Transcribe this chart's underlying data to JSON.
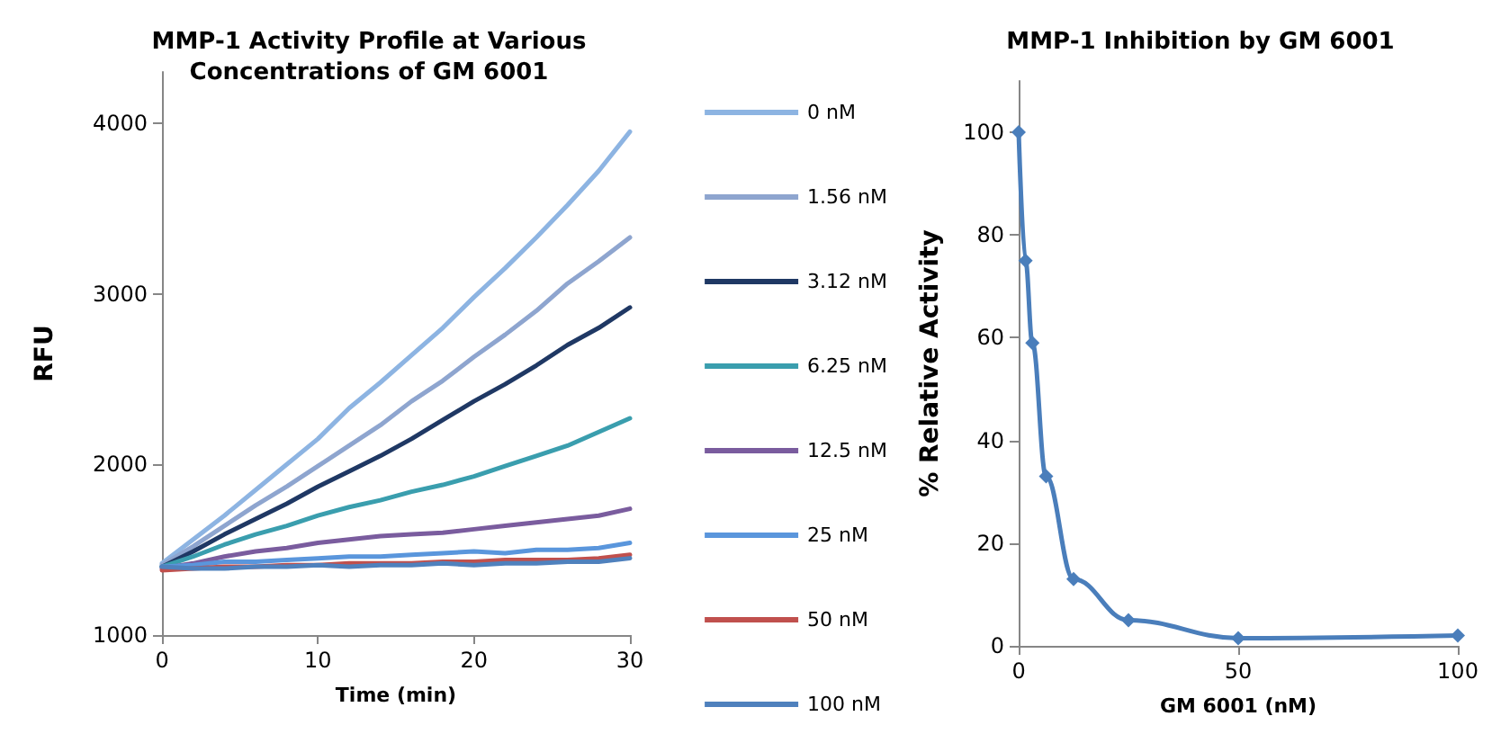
{
  "chart_data": [
    {
      "type": "line",
      "title": "MMP-1 Activity Profile at Various\nConcentrations of GM 6001",
      "xlabel": "Time (min)",
      "ylabel": "RFU",
      "x": [
        0,
        2,
        4,
        6,
        8,
        10,
        12,
        14,
        16,
        18,
        20,
        22,
        24,
        26,
        28,
        30
      ],
      "xlim": [
        0,
        30
      ],
      "xticks": [
        0,
        10,
        20,
        30
      ],
      "ylim": [
        1000,
        4300
      ],
      "yticks": [
        1000,
        2000,
        3000,
        4000
      ],
      "legend": "right",
      "marker": "none",
      "grid": false,
      "series": [
        {
          "name": "0 nM",
          "color": "#8db4e2",
          "values": [
            1420,
            1560,
            1700,
            1850,
            2000,
            2150,
            2330,
            2480,
            2640,
            2800,
            2980,
            3150,
            3330,
            3520,
            3720,
            3950
          ]
        },
        {
          "name": "1.56 nM",
          "color": "#8ea5cf",
          "values": [
            1410,
            1520,
            1640,
            1760,
            1870,
            1990,
            2110,
            2230,
            2370,
            2490,
            2630,
            2760,
            2900,
            3060,
            3190,
            3330
          ]
        },
        {
          "name": "3.12 nM",
          "color": "#1f3864",
          "values": [
            1400,
            1490,
            1590,
            1680,
            1770,
            1870,
            1960,
            2050,
            2150,
            2260,
            2370,
            2470,
            2580,
            2700,
            2800,
            2920
          ]
        },
        {
          "name": "6.25 nM",
          "color": "#3a9eae",
          "values": [
            1400,
            1460,
            1530,
            1590,
            1640,
            1700,
            1750,
            1790,
            1840,
            1880,
            1930,
            1990,
            2050,
            2110,
            2190,
            2270
          ]
        },
        {
          "name": "12.5 nM",
          "color": "#7a5c9e",
          "values": [
            1390,
            1420,
            1460,
            1490,
            1510,
            1540,
            1560,
            1580,
            1590,
            1600,
            1620,
            1640,
            1660,
            1680,
            1700,
            1740
          ]
        },
        {
          "name": "25 nM",
          "color": "#5a96dc",
          "values": [
            1400,
            1410,
            1430,
            1430,
            1440,
            1450,
            1460,
            1460,
            1470,
            1480,
            1490,
            1480,
            1500,
            1500,
            1510,
            1540
          ]
        },
        {
          "name": "50 nM",
          "color": "#c0504d",
          "values": [
            1380,
            1390,
            1400,
            1400,
            1410,
            1410,
            1420,
            1420,
            1420,
            1430,
            1430,
            1440,
            1440,
            1440,
            1450,
            1470
          ]
        },
        {
          "name": "100 nM",
          "color": "#4f81bd",
          "values": [
            1400,
            1390,
            1390,
            1400,
            1400,
            1410,
            1400,
            1410,
            1410,
            1420,
            1410,
            1420,
            1420,
            1430,
            1430,
            1450
          ]
        }
      ]
    },
    {
      "type": "line",
      "title": "MMP-1 Inhibition by GM 6001",
      "xlabel": "GM 6001 (nM)",
      "ylabel": "% Relative Activity",
      "x": [
        0,
        1.56,
        3.12,
        6.25,
        12.5,
        25,
        50,
        100
      ],
      "xlim": [
        0,
        100
      ],
      "xticks": [
        0,
        50,
        100
      ],
      "ylim": [
        0,
        110
      ],
      "yticks": [
        0,
        20,
        40,
        60,
        80,
        100
      ],
      "legend": false,
      "marker": "diamond",
      "grid": false,
      "series": [
        {
          "color": "#4a7ebb",
          "values": [
            100,
            75,
            59,
            33,
            13,
            5,
            1.5,
            2
          ]
        }
      ]
    }
  ]
}
